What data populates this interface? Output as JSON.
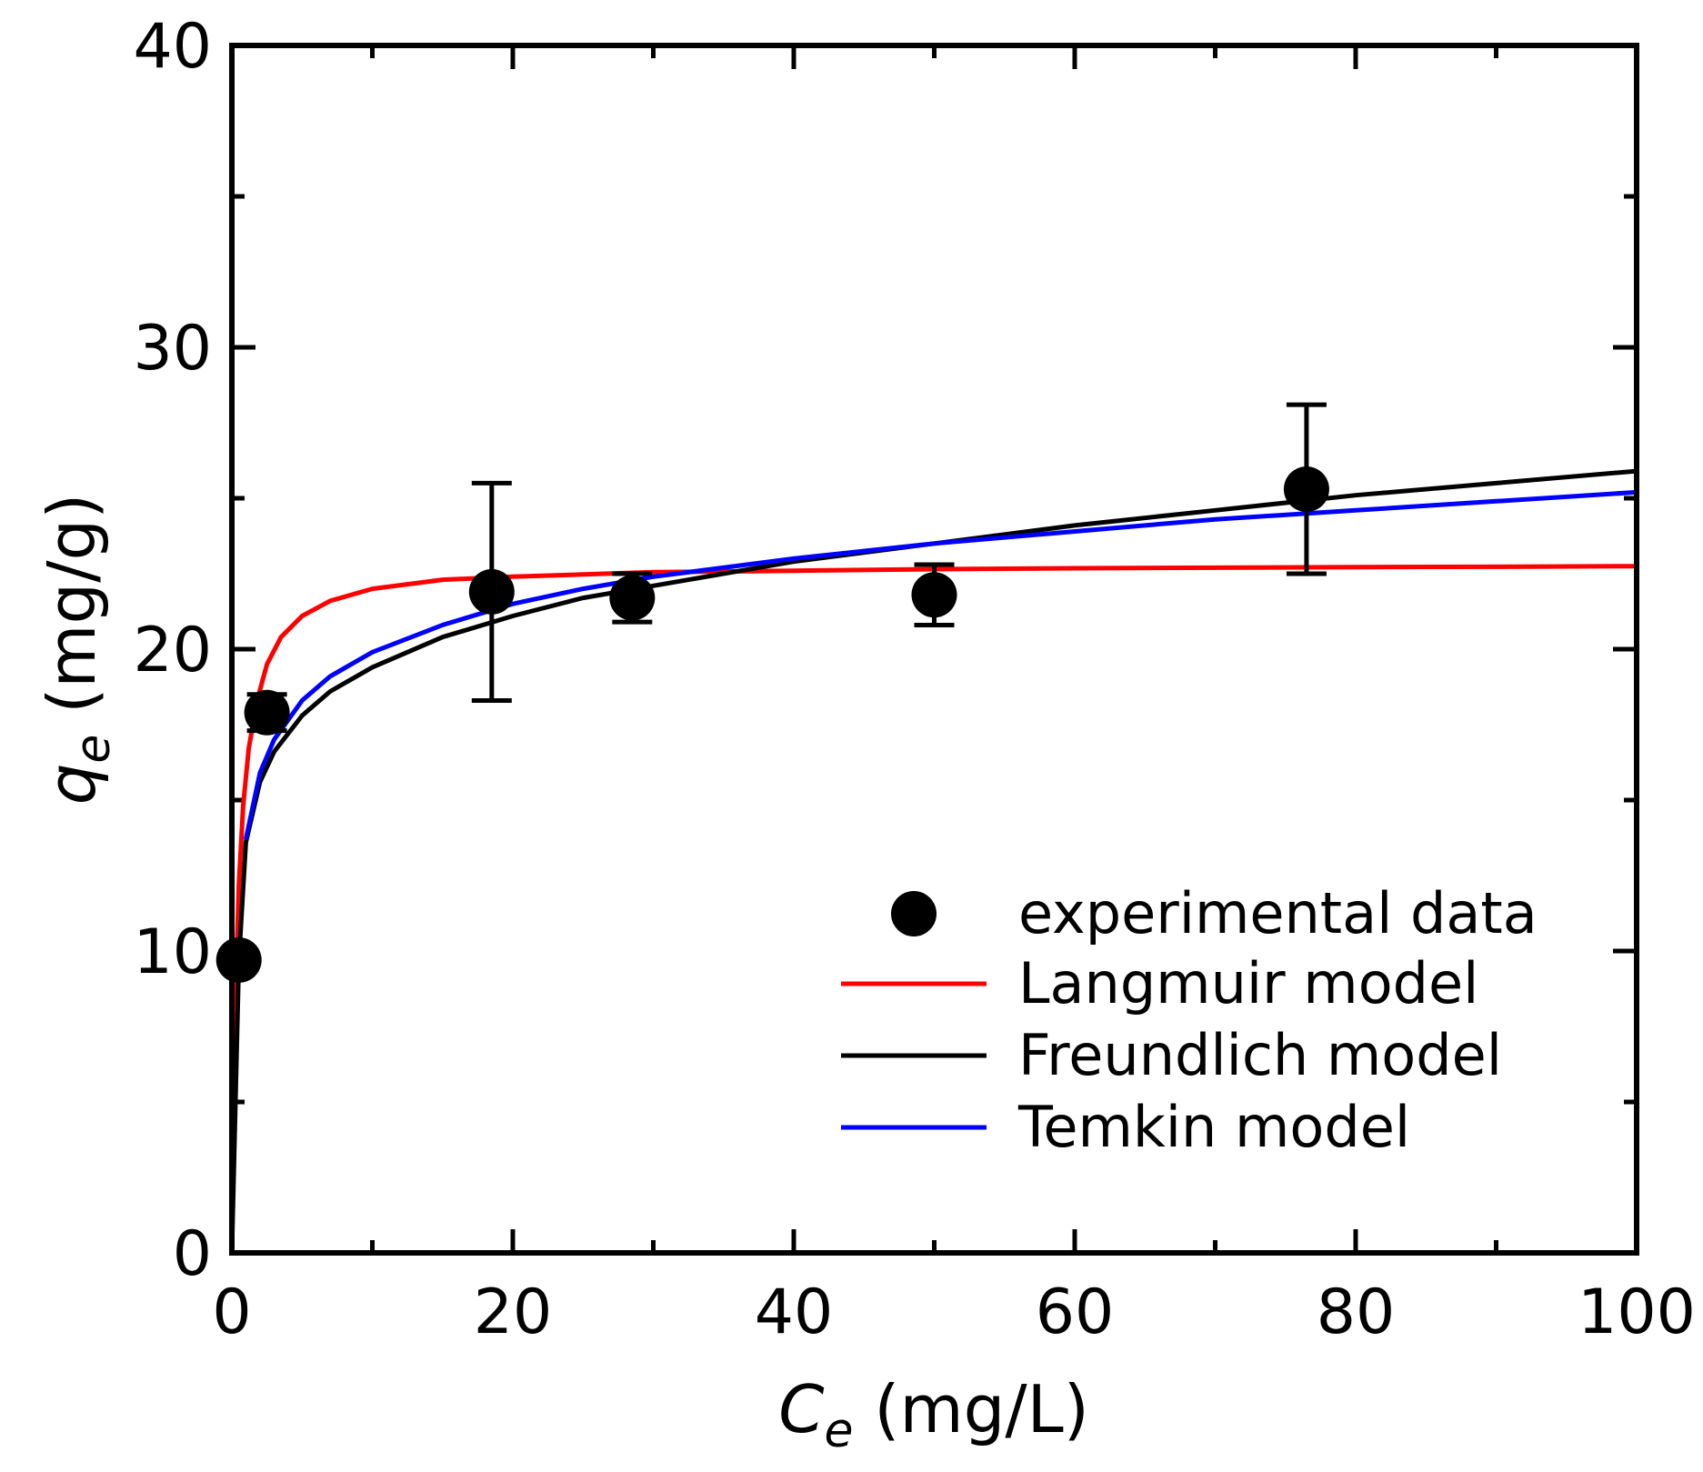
{
  "chart_data": {
    "type": "scatter",
    "xlabel": {
      "symbol": "C",
      "subscript": "e",
      "unit": " (mg/L)"
    },
    "ylabel": {
      "symbol": "q",
      "subscript": "e",
      "unit": " (mg/g)"
    },
    "xlim": [
      0,
      100
    ],
    "ylim": [
      0,
      40
    ],
    "x_ticks": [
      0,
      20,
      40,
      60,
      80,
      100
    ],
    "y_ticks": [
      0,
      10,
      20,
      30,
      40
    ],
    "x_tick_labels": [
      "0",
      "20",
      "40",
      "60",
      "80",
      "100"
    ],
    "y_tick_labels": [
      "0",
      "10",
      "20",
      "30",
      "40"
    ],
    "legend_position": "bottom-right",
    "experimental": {
      "name": "experimental data",
      "color": "#000000",
      "points": [
        {
          "x": 0.5,
          "y": 9.7,
          "err": 0.3
        },
        {
          "x": 2.5,
          "y": 17.9,
          "err": 0.6
        },
        {
          "x": 18.5,
          "y": 21.9,
          "err": 3.6
        },
        {
          "x": 28.5,
          "y": 21.7,
          "err": 0.8
        },
        {
          "x": 50.0,
          "y": 21.8,
          "err": 1.0
        },
        {
          "x": 76.5,
          "y": 25.3,
          "err": 2.8
        }
      ]
    },
    "series": [
      {
        "name": "Langmuir model",
        "color": "#ff0000",
        "x": [
          0,
          0.25,
          0.5,
          0.8,
          1.2,
          1.8,
          2.5,
          3.5,
          5,
          7,
          10,
          15,
          20,
          30,
          40,
          50,
          60,
          70,
          80,
          90,
          100
        ],
        "y": [
          0,
          8.3,
          12.2,
          14.8,
          16.7,
          18.3,
          19.5,
          20.4,
          21.1,
          21.6,
          22.0,
          22.3,
          22.4,
          22.55,
          22.6,
          22.65,
          22.68,
          22.7,
          22.72,
          22.73,
          22.75
        ]
      },
      {
        "name": "Freundlich model",
        "color": "#000000",
        "x": [
          0,
          0.5,
          1,
          2,
          3,
          5,
          7,
          10,
          15,
          20,
          25,
          30,
          40,
          50,
          60,
          70,
          80,
          90,
          100
        ],
        "y": [
          0,
          9.7,
          13.6,
          15.6,
          16.6,
          17.8,
          18.6,
          19.4,
          20.4,
          21.1,
          21.7,
          22.1,
          22.9,
          23.5,
          24.1,
          24.6,
          25.1,
          25.5,
          25.9
        ]
      },
      {
        "name": "Temkin model",
        "color": "#0000ff",
        "x": [
          1,
          2,
          3,
          5,
          7,
          10,
          15,
          20,
          25,
          30,
          40,
          50,
          60,
          70,
          80,
          90,
          100
        ],
        "y": [
          13.7,
          15.9,
          17.0,
          18.3,
          19.1,
          19.9,
          20.8,
          21.5,
          22.0,
          22.4,
          23.0,
          23.5,
          23.9,
          24.3,
          24.6,
          24.9,
          25.2
        ]
      }
    ]
  }
}
